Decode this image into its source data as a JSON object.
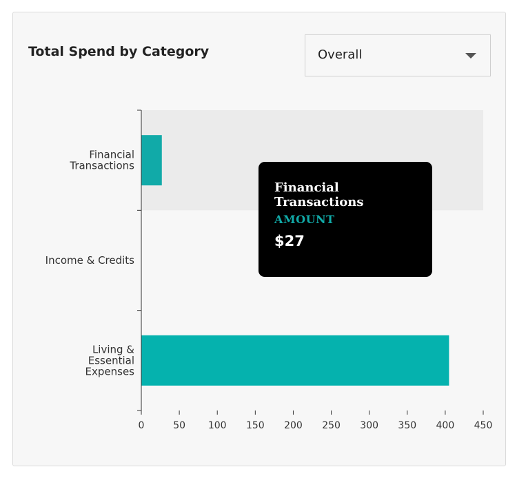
{
  "card": {
    "title": "Total Spend by Category",
    "filter": {
      "selected": "Overall",
      "icon": "chevron-down-icon"
    }
  },
  "chart_data": {
    "type": "bar",
    "orientation": "horizontal",
    "categories": [
      "Financial Transactions",
      "Income & Credits",
      "Living & Essential Expenses"
    ],
    "category_lines": [
      [
        "Financial",
        "Transactions"
      ],
      [
        "Income & Credits"
      ],
      [
        "Living &",
        "Essential",
        "Expenses"
      ]
    ],
    "values": [
      27,
      0,
      405
    ],
    "xlim": [
      0,
      450
    ],
    "xticks": [
      0,
      50,
      100,
      150,
      200,
      250,
      300,
      350,
      400,
      450
    ],
    "highlighted_category": "Financial Transactions",
    "grid": false,
    "colors": {
      "bar": "#05b2ae",
      "hover_bar": "#11aaa8",
      "hover_band": "#ebebeb"
    }
  },
  "tooltip": {
    "title": "Financial Transactions",
    "label": "AMOUNT",
    "value": "$27"
  }
}
